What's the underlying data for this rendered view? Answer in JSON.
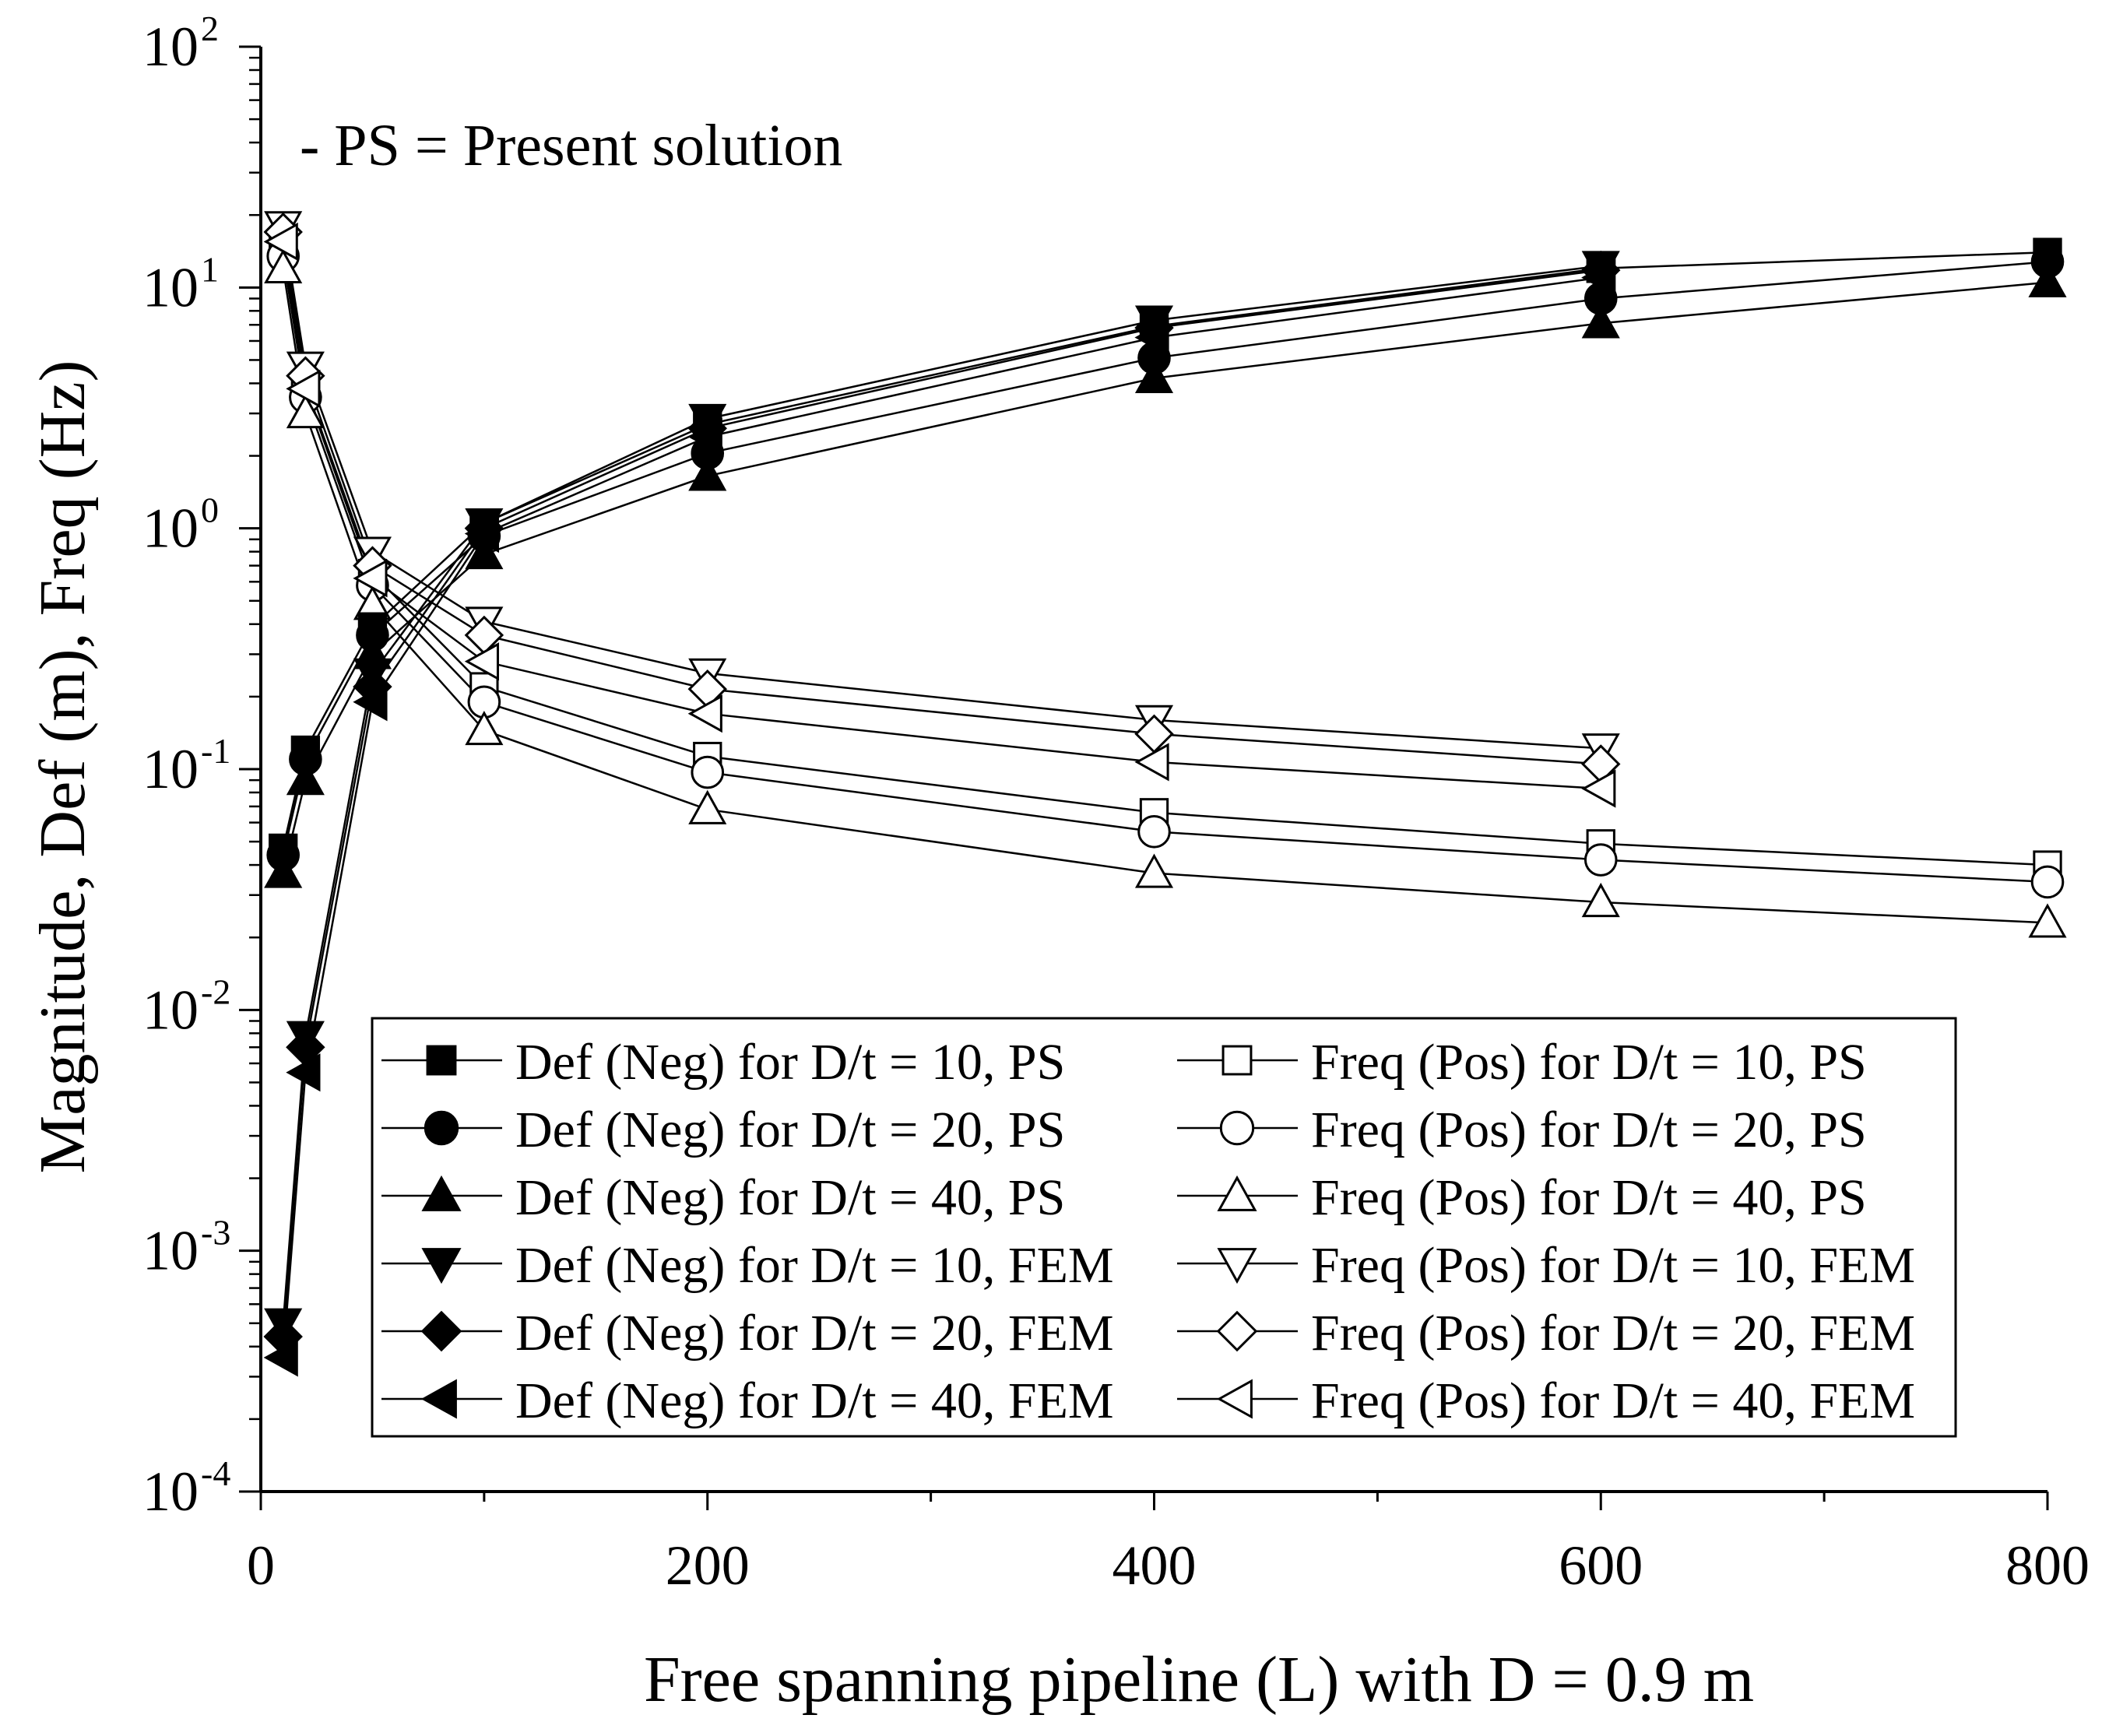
{
  "chart_data": {
    "type": "line",
    "title": "",
    "annotation": "- PS = Present solution",
    "xlabel": "Free spanning pipeline (L) with D = 0.9 m",
    "ylabel": "Magnitude, Def (m), Freq (Hz)",
    "xlim": [
      0,
      800
    ],
    "ylim": [
      0.0001,
      100
    ],
    "yscale": "log",
    "x_ticks": [
      0,
      200,
      400,
      600,
      800
    ],
    "y_ticks": [
      {
        "value": 0.0001,
        "base": "10",
        "exp": "-4"
      },
      {
        "value": 0.001,
        "base": "10",
        "exp": "-3"
      },
      {
        "value": 0.01,
        "base": "10",
        "exp": "-2"
      },
      {
        "value": 0.1,
        "base": "10",
        "exp": "-1"
      },
      {
        "value": 1,
        "base": "10",
        "exp": "0"
      },
      {
        "value": 10,
        "base": "10",
        "exp": "1"
      },
      {
        "value": 100,
        "base": "10",
        "exp": "2"
      }
    ],
    "legend_position": "bottom-right",
    "series": [
      {
        "name": "Def (Neg) for D/t = 10, PS",
        "marker": "square",
        "filled": true,
        "x": [
          10,
          20,
          50,
          100,
          200,
          400,
          600,
          800
        ],
        "y": [
          0.047,
          0.12,
          0.39,
          1.05,
          2.7,
          6.9,
          12.0,
          14.0
        ]
      },
      {
        "name": "Def (Neg) for D/t = 20, PS",
        "marker": "circle",
        "filled": true,
        "x": [
          10,
          20,
          50,
          100,
          200,
          400,
          600,
          800
        ],
        "y": [
          0.044,
          0.11,
          0.36,
          0.93,
          2.05,
          5.1,
          9.0,
          12.8
        ]
      },
      {
        "name": "Def (Neg) for D/t = 40, PS",
        "marker": "triangle-up",
        "filled": true,
        "x": [
          10,
          20,
          50,
          100,
          200,
          400,
          600,
          800
        ],
        "y": [
          0.037,
          0.09,
          0.3,
          0.78,
          1.65,
          4.2,
          7.1,
          10.5
        ]
      },
      {
        "name": "Def (Neg) for D/t = 10, FEM",
        "marker": "triangle-down",
        "filled": true,
        "x": [
          10,
          20,
          50,
          100,
          200,
          400,
          600
        ],
        "y": [
          0.0005,
          0.0078,
          0.25,
          1.05,
          2.85,
          7.3,
          12.3
        ]
      },
      {
        "name": "Def (Neg) for D/t = 20, FEM",
        "marker": "diamond",
        "filled": true,
        "x": [
          10,
          20,
          50,
          100,
          200,
          400,
          600
        ],
        "y": [
          0.00044,
          0.007,
          0.22,
          1.0,
          2.6,
          6.8,
          11.8
        ]
      },
      {
        "name": "Def (Neg) for D/t = 40, FEM",
        "marker": "triangle-left",
        "filled": true,
        "x": [
          10,
          20,
          50,
          100,
          200,
          400,
          600
        ],
        "y": [
          0.00036,
          0.0055,
          0.19,
          0.95,
          2.4,
          6.2,
          11.0
        ]
      },
      {
        "name": "Freq (Pos) for D/t = 10, PS",
        "marker": "square",
        "filled": false,
        "x": [
          10,
          20,
          50,
          100,
          200,
          400,
          600,
          800
        ],
        "y": [
          14.5,
          3.9,
          0.65,
          0.22,
          0.113,
          0.066,
          0.049,
          0.04
        ]
      },
      {
        "name": "Freq (Pos) for D/t = 20, PS",
        "marker": "circle",
        "filled": false,
        "x": [
          10,
          20,
          50,
          100,
          200,
          400,
          600,
          800
        ],
        "y": [
          13.5,
          3.5,
          0.58,
          0.19,
          0.097,
          0.055,
          0.042,
          0.034
        ]
      },
      {
        "name": "Freq (Pos) for D/t = 40, PS",
        "marker": "triangle-up",
        "filled": false,
        "x": [
          10,
          20,
          50,
          100,
          200,
          400,
          600,
          800
        ],
        "y": [
          12.0,
          3.0,
          0.48,
          0.145,
          0.068,
          0.037,
          0.028,
          0.023
        ]
      },
      {
        "name": "Freq (Pos) for D/t = 10, FEM",
        "marker": "triangle-down",
        "filled": false,
        "x": [
          10,
          20,
          50,
          100,
          200,
          400,
          600
        ],
        "y": [
          18.0,
          4.7,
          0.8,
          0.41,
          0.25,
          0.16,
          0.122
        ]
      },
      {
        "name": "Freq (Pos) for D/t = 20, FEM",
        "marker": "diamond",
        "filled": false,
        "x": [
          10,
          20,
          50,
          100,
          200,
          400,
          600
        ],
        "y": [
          17.0,
          4.3,
          0.7,
          0.36,
          0.215,
          0.14,
          0.105
        ]
      },
      {
        "name": "Freq (Pos) for D/t = 40, FEM",
        "marker": "triangle-left",
        "filled": false,
        "x": [
          10,
          20,
          50,
          100,
          200,
          400,
          600
        ],
        "y": [
          15.5,
          3.8,
          0.62,
          0.28,
          0.17,
          0.107,
          0.083
        ]
      }
    ]
  }
}
